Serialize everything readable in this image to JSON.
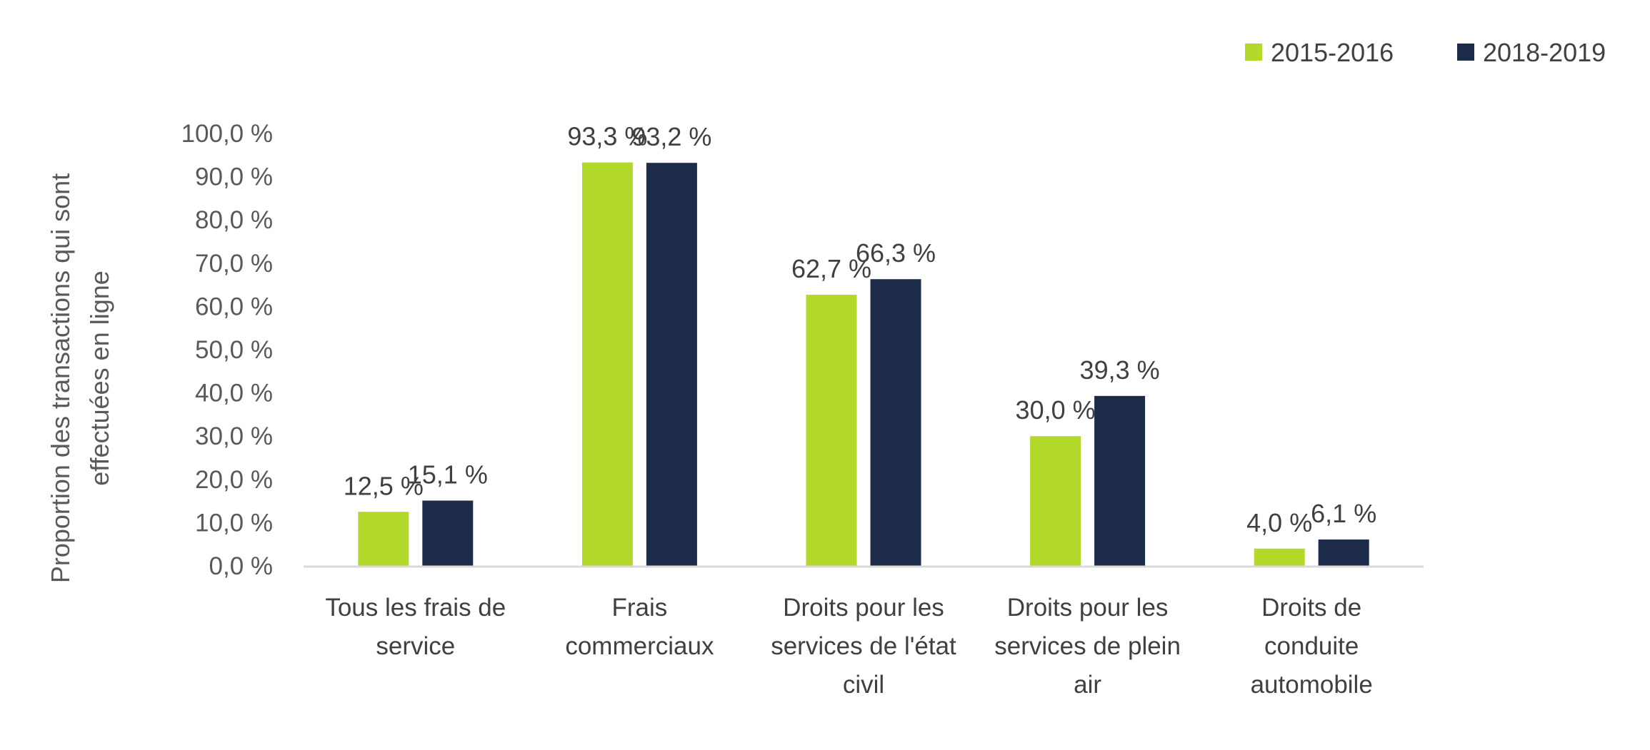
{
  "chart_data": {
    "type": "bar",
    "title": "",
    "ylabel": "Proportion des transactions qui sont effectuées en ligne",
    "ylabel_lines": [
      "Proportion des transactions qui sont",
      "effectuées en ligne"
    ],
    "ylim": [
      0,
      100
    ],
    "yticks": [
      0,
      10,
      20,
      30,
      40,
      50,
      60,
      70,
      80,
      90,
      100
    ],
    "ytick_labels": [
      "0,0 %",
      "10,0 %",
      "20,0 %",
      "30,0 %",
      "40,0 %",
      "50,0 %",
      "60,0 %",
      "70,0 %",
      "80,0 %",
      "90,0 %",
      "100,0 %"
    ],
    "grid": false,
    "legend_position": "top-right",
    "categories": [
      [
        "Tous les frais de",
        "service"
      ],
      [
        "Frais",
        "commerciaux"
      ],
      [
        "Droits pour les",
        "services de l'état",
        "civil"
      ],
      [
        "Droits pour les",
        "services de plein",
        "air"
      ],
      [
        "Droits de",
        "conduite",
        "automobile"
      ]
    ],
    "series": [
      {
        "name": "2015-2016",
        "color": "#b3d92b",
        "values": [
          12.5,
          93.3,
          62.7,
          30.0,
          4.0
        ],
        "labels": [
          "12,5 %",
          "93,3 %",
          "62,7 %",
          "30,0 %",
          "4,0 %"
        ]
      },
      {
        "name": "2018-2019",
        "color": "#1c2b4a",
        "values": [
          15.1,
          93.2,
          66.3,
          39.3,
          6.1
        ],
        "labels": [
          "15,1 %",
          "93,2 %",
          "66,3 %",
          "39,3 %",
          "6,1 %"
        ]
      }
    ]
  }
}
